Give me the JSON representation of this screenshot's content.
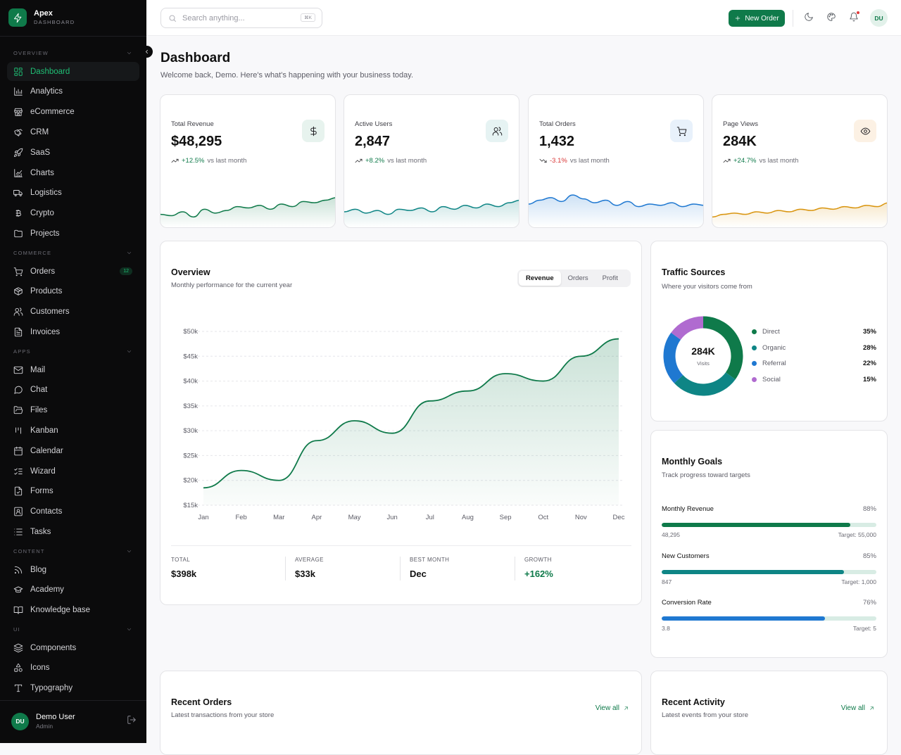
{
  "brand": {
    "name": "Apex",
    "subtitle": "DASHBOARD"
  },
  "sidebar": {
    "sections": [
      {
        "title": "OVERVIEW",
        "items": [
          {
            "label": "Dashboard",
            "icon": "layout-grid-icon",
            "active": true
          },
          {
            "label": "Analytics",
            "icon": "bar-chart-icon"
          },
          {
            "label": "eCommerce",
            "icon": "store-icon"
          },
          {
            "label": "CRM",
            "icon": "handshake-icon"
          },
          {
            "label": "SaaS",
            "icon": "rocket-icon"
          },
          {
            "label": "Charts",
            "icon": "line-chart-icon"
          },
          {
            "label": "Logistics",
            "icon": "truck-icon"
          },
          {
            "label": "Crypto",
            "icon": "bitcoin-icon"
          },
          {
            "label": "Projects",
            "icon": "folder-icon"
          }
        ]
      },
      {
        "title": "COMMERCE",
        "items": [
          {
            "label": "Orders",
            "icon": "cart-icon",
            "badge": "12"
          },
          {
            "label": "Products",
            "icon": "package-icon"
          },
          {
            "label": "Customers",
            "icon": "users-icon"
          },
          {
            "label": "Invoices",
            "icon": "invoice-icon"
          }
        ]
      },
      {
        "title": "APPS",
        "items": [
          {
            "label": "Mail",
            "icon": "mail-icon"
          },
          {
            "label": "Chat",
            "icon": "chat-icon"
          },
          {
            "label": "Files",
            "icon": "folder-open-icon"
          },
          {
            "label": "Kanban",
            "icon": "kanban-icon"
          },
          {
            "label": "Calendar",
            "icon": "calendar-icon"
          },
          {
            "label": "Wizard",
            "icon": "list-checks-icon"
          },
          {
            "label": "Forms",
            "icon": "form-icon"
          },
          {
            "label": "Contacts",
            "icon": "contacts-icon"
          },
          {
            "label": "Tasks",
            "icon": "tasks-icon"
          }
        ]
      },
      {
        "title": "CONTENT",
        "items": [
          {
            "label": "Blog",
            "icon": "rss-icon"
          },
          {
            "label": "Academy",
            "icon": "graduation-cap-icon"
          },
          {
            "label": "Knowledge base",
            "icon": "book-icon"
          }
        ]
      },
      {
        "title": "UI",
        "items": [
          {
            "label": "Components",
            "icon": "layers-icon"
          },
          {
            "label": "Icons",
            "icon": "shapes-icon"
          },
          {
            "label": "Typography",
            "icon": "type-icon"
          }
        ]
      }
    ],
    "user": {
      "initials": "DU",
      "name": "Demo User",
      "role": "Admin"
    }
  },
  "header": {
    "search_placeholder": "Search anything...",
    "search_shortcut": "⌘K",
    "new_order_label": "New Order",
    "avatar_initials": "DU"
  },
  "page": {
    "title": "Dashboard",
    "subtitle": "Welcome back, Demo. Here's what's happening with your business today."
  },
  "stats": [
    {
      "label": "Total Revenue",
      "value": "$48,295",
      "delta": "+12.5%",
      "trend": "up",
      "compare": "vs last month",
      "icon": "dollar-icon",
      "color": "#0f7a4a",
      "icon_bg": "#e7f3ee",
      "spark": [
        20,
        19,
        22,
        18,
        24,
        21,
        23,
        26,
        25,
        27,
        24,
        28,
        26,
        30,
        29,
        31,
        33
      ]
    },
    {
      "label": "Active Users",
      "value": "2,847",
      "delta": "+8.2%",
      "trend": "up",
      "compare": "vs last month",
      "icon": "users-icon",
      "color": "#0e8585",
      "icon_bg": "#e6f3f3",
      "spark": [
        22,
        24,
        21,
        23,
        20,
        24,
        23,
        25,
        22,
        26,
        24,
        27,
        25,
        28,
        26,
        29,
        31
      ]
    },
    {
      "label": "Total Orders",
      "value": "1,432",
      "delta": "-3.1%",
      "trend": "down",
      "compare": "vs last month",
      "icon": "cart-icon",
      "color": "#1f78d1",
      "icon_bg": "#e8f1fb",
      "spark": [
        28,
        31,
        33,
        30,
        35,
        32,
        29,
        31,
        27,
        30,
        26,
        28,
        27,
        29,
        26,
        28,
        27
      ]
    },
    {
      "label": "Page Views",
      "value": "284K",
      "delta": "+24.7%",
      "trend": "up",
      "compare": "vs last month",
      "icon": "eye-icon",
      "color": "#d9950f",
      "icon_bg": "#fcf1e4",
      "spark": [
        18,
        20,
        21,
        20,
        22,
        21,
        23,
        22,
        24,
        23,
        25,
        24,
        26,
        25,
        27,
        26,
        29
      ]
    }
  ],
  "overview": {
    "title": "Overview",
    "subtitle": "Monthly performance for the current year",
    "tabs": [
      "Revenue",
      "Orders",
      "Profit"
    ],
    "active_tab": "Revenue",
    "summary": [
      {
        "label": "TOTAL",
        "value": "$398k"
      },
      {
        "label": "AVERAGE",
        "value": "$33k"
      },
      {
        "label": "BEST MONTH",
        "value": "Dec"
      },
      {
        "label": "GROWTH",
        "value": "+162%",
        "accent": "#0f7a4a"
      }
    ]
  },
  "chart_data": {
    "type": "area",
    "categories": [
      "Jan",
      "Feb",
      "Mar",
      "Apr",
      "May",
      "Jun",
      "Jul",
      "Aug",
      "Sep",
      "Oct",
      "Nov",
      "Dec"
    ],
    "series": [
      {
        "values": [
          18.5,
          22,
          20,
          28,
          32,
          29.5,
          36,
          38,
          41.5,
          40,
          45,
          48.5
        ]
      }
    ],
    "yticks": [
      "$15k",
      "$20k",
      "$25k",
      "$30k",
      "$35k",
      "$40k",
      "$45k",
      "$50k"
    ],
    "ylim": [
      15,
      50
    ],
    "grid": true,
    "color": "#0f7a4a"
  },
  "traffic": {
    "title": "Traffic Sources",
    "subtitle": "Where your visitors come from",
    "center_value": "284K",
    "center_label": "Visits",
    "sources": [
      {
        "name": "Direct",
        "pct": "35%",
        "value": 35,
        "color": "#0f7a4a"
      },
      {
        "name": "Organic",
        "pct": "28%",
        "value": 28,
        "color": "#0e8585"
      },
      {
        "name": "Referral",
        "pct": "22%",
        "value": 22,
        "color": "#1f78d1"
      },
      {
        "name": "Social",
        "pct": "15%",
        "value": 15,
        "color": "#b06bd0"
      }
    ]
  },
  "goals": {
    "title": "Monthly Goals",
    "subtitle": "Track progress toward targets",
    "items": [
      {
        "name": "Monthly Revenue",
        "pct": "88%",
        "current": "48,295",
        "target": "Target: 55,000",
        "progress": 0.88,
        "color": "#0f7a4a"
      },
      {
        "name": "New Customers",
        "pct": "85%",
        "current": "847",
        "target": "Target: 1,000",
        "progress": 0.85,
        "color": "#0e8585"
      },
      {
        "name": "Conversion Rate",
        "pct": "76%",
        "current": "3.8",
        "target": "Target: 5",
        "progress": 0.76,
        "color": "#1f78d1"
      }
    ]
  },
  "recent_orders": {
    "title": "Recent Orders",
    "subtitle": "Latest transactions from your store",
    "view_all": "View all"
  },
  "recent_activity": {
    "title": "Recent Activity",
    "subtitle": "Latest events from your store",
    "view_all": "View all"
  }
}
